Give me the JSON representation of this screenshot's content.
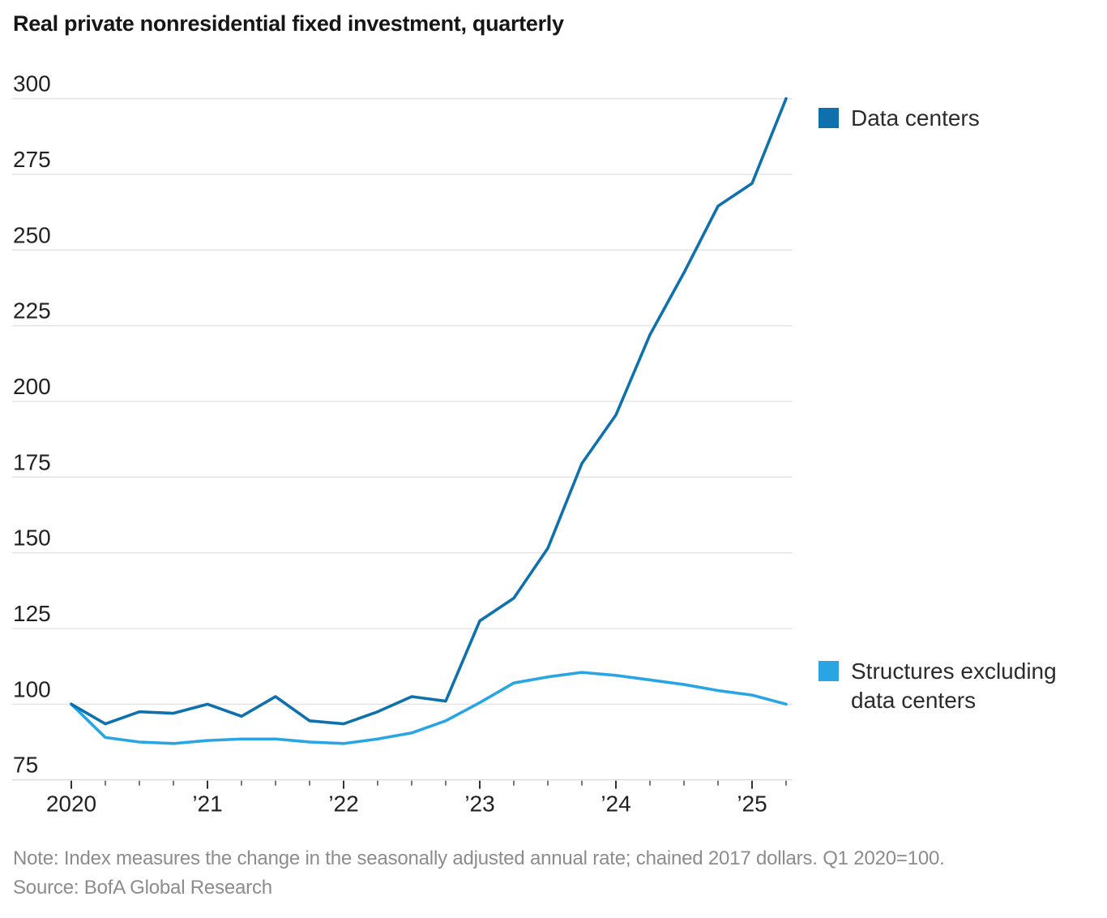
{
  "title": "Real private nonresidential fixed investment, quarterly",
  "note": "Note: Index measures the change in the seasonally adjusted annual rate; chained 2017 dollars. Q1 2020=100.",
  "source": "Source: BofA Global Research",
  "legend": {
    "data_centers_label": "Data centers",
    "structures_label_line1": "Structures excluding",
    "structures_label_line2": "data centers"
  },
  "colors": {
    "data_centers_line": "#0e71ad",
    "structures_line": "#28a5e2",
    "gridline": "#e5e5e5",
    "axis_line": "#dcdcdc",
    "tick_major": "#333333",
    "tick_minor": "#555555",
    "axis_label": "#222222",
    "title_text": "#161616",
    "note_text": "#8c8c8c"
  },
  "chart_data": {
    "type": "line",
    "title": "Real private nonresidential fixed investment, quarterly",
    "x_quarters": [
      "2020 Q1",
      "2020 Q2",
      "2020 Q3",
      "2020 Q4",
      "2021 Q1",
      "2021 Q2",
      "2021 Q3",
      "2021 Q4",
      "2022 Q1",
      "2022 Q2",
      "2022 Q3",
      "2022 Q4",
      "2023 Q1",
      "2023 Q2",
      "2023 Q3",
      "2023 Q4",
      "2024 Q1",
      "2024 Q2",
      "2024 Q3",
      "2024 Q4",
      "2025 Q1",
      "2025 Q2"
    ],
    "x_axis_tick_labels": [
      "2020",
      "’21",
      "’22",
      "’23",
      "’24",
      "’25"
    ],
    "y_ticks": [
      75,
      100,
      125,
      150,
      175,
      200,
      225,
      250,
      275,
      300
    ],
    "ylim": [
      75,
      300
    ],
    "grid": "horizontal",
    "legend_position": "right",
    "index_base": "Q1 2020=100",
    "series": [
      {
        "name": "Data centers",
        "color": "#0e71ad",
        "values": [
          100,
          93.5,
          97.5,
          97,
          100,
          96,
          102.5,
          94.5,
          93.5,
          97.5,
          102.5,
          101,
          127.5,
          135,
          151.5,
          179.5,
          195.5,
          222,
          242.5,
          264.5,
          272,
          300
        ]
      },
      {
        "name": "Structures excluding data centers",
        "color": "#28a5e2",
        "values": [
          100,
          89,
          87.5,
          87,
          88,
          88.5,
          88.5,
          87.5,
          87,
          88.5,
          90.5,
          94.5,
          100.5,
          107,
          109,
          110.5,
          109.5,
          108,
          106.5,
          104.5,
          103,
          100
        ]
      }
    ]
  }
}
